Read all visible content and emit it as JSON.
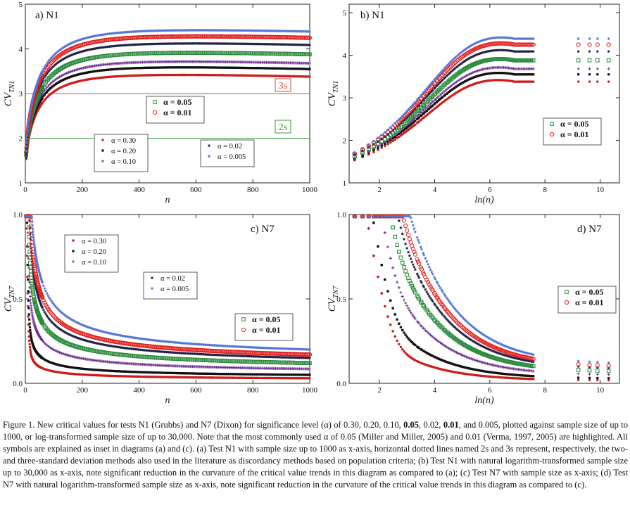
{
  "colors": {
    "a030": "#d01b1b",
    "a020": "#111111",
    "a010": "#6a2d8f",
    "a005": "#2a8a3a",
    "a002": "#222244",
    "a001": "#e0201e",
    "a0005": "#5577d8",
    "line3s": "#d04848",
    "line2s": "#3a9a3a"
  },
  "chart_data": [
    {
      "panel": "a",
      "type": "scatter",
      "title": "a)  N1",
      "xlabel": "n",
      "ylabel": "CV",
      "ylabel_sub": "TN1",
      "xlim": [
        0,
        1000
      ],
      "ylim": [
        1,
        5
      ],
      "xticks": [
        "0",
        "200",
        "400",
        "600",
        "800",
        "1000"
      ],
      "yticks": [
        "1",
        "2",
        "3",
        "4",
        "5"
      ],
      "hlines": [
        {
          "label": "3s",
          "y": 3.0
        },
        {
          "label": "2s",
          "y": 2.0
        }
      ],
      "series": [
        {
          "name": "α = 0.30",
          "key": "a030",
          "marker": "dot",
          "at1000": 3.38
        },
        {
          "name": "α = 0.20",
          "key": "a020",
          "marker": "square",
          "at1000": 3.55
        },
        {
          "name": "α = 0.10",
          "key": "a010",
          "marker": "cross",
          "at1000": 3.68
        },
        {
          "name": "α = 0.05",
          "key": "a005",
          "marker": "opensquare",
          "at1000": 3.88
        },
        {
          "name": "α = 0.02",
          "key": "a002",
          "marker": "star",
          "at1000": 4.09
        },
        {
          "name": "α = 0.01",
          "key": "a001",
          "marker": "opencircle",
          "at1000": 4.25
        },
        {
          "name": "α = 0.005",
          "key": "a0005",
          "marker": "star",
          "at1000": 4.39
        }
      ],
      "legends": [
        {
          "items": [
            "a005",
            "a001"
          ],
          "bold": true
        },
        {
          "items": [
            "a030",
            "a020",
            "a010"
          ],
          "bold": false
        },
        {
          "items": [
            "a002",
            "a0005"
          ],
          "bold": false
        }
      ]
    },
    {
      "panel": "b",
      "type": "scatter",
      "title": "b)  N1",
      "xlabel": "ln(n)",
      "ylabel": "CV",
      "ylabel_sub": "TN1",
      "xlim": [
        0.9,
        10.7
      ],
      "ylim": [
        1,
        5.2
      ],
      "xticks": [
        "2",
        "4",
        "6",
        "8",
        "10"
      ],
      "yticks": [
        "1",
        "2",
        "3",
        "4",
        "5"
      ],
      "series_ref": "a",
      "legends": [
        {
          "items": [
            "a005",
            "a001"
          ],
          "bold": true
        }
      ]
    },
    {
      "panel": "c",
      "type": "scatter",
      "title": "c)  N7",
      "xlabel": "n",
      "ylabel": "CV",
      "ylabel_sub": "TN7",
      "xlim": [
        0,
        1000
      ],
      "ylim": [
        0,
        1.0
      ],
      "xticks": [
        "0",
        "200",
        "400",
        "600",
        "800",
        "1000"
      ],
      "yticks": [
        "0.0",
        "0.5",
        "1.0"
      ],
      "series": [
        {
          "name": "α = 0.30",
          "key": "a030",
          "marker": "dot",
          "at1000": 0.03
        },
        {
          "name": "α = 0.20",
          "key": "a020",
          "marker": "square",
          "at1000": 0.05
        },
        {
          "name": "α = 0.10",
          "key": "a010",
          "marker": "cross",
          "at1000": 0.085
        },
        {
          "name": "α = 0.05",
          "key": "a005",
          "marker": "opensquare",
          "at1000": 0.12
        },
        {
          "name": "α = 0.02",
          "key": "a002",
          "marker": "star",
          "at1000": 0.15
        },
        {
          "name": "α = 0.01",
          "key": "a001",
          "marker": "opencircle",
          "at1000": 0.17
        },
        {
          "name": "α = 0.005",
          "key": "a0005",
          "marker": "star",
          "at1000": 0.2
        }
      ],
      "legends": [
        {
          "items": [
            "a030",
            "a020",
            "a010"
          ],
          "bold": false
        },
        {
          "items": [
            "a002",
            "a0005"
          ],
          "bold": false
        },
        {
          "items": [
            "a005",
            "a001"
          ],
          "bold": true
        }
      ]
    },
    {
      "panel": "d",
      "type": "scatter",
      "title": "d)  N7",
      "xlabel": "ln(n)",
      "ylabel": "CV",
      "ylabel_sub": "TN7",
      "xlim": [
        0.9,
        10.7
      ],
      "ylim": [
        0,
        1.0
      ],
      "xticks": [
        "2",
        "4",
        "6",
        "8",
        "10"
      ],
      "yticks": [
        "0.0",
        "0.5",
        "1.0"
      ],
      "series_ref": "c",
      "legends": [
        {
          "items": [
            "a005",
            "a001"
          ],
          "bold": true
        }
      ]
    }
  ],
  "caption": {
    "p1": "Figure 1. New critical values for tests N1 (Grubbs) and N7 (Dixon) for significance level (α) of 0.30, 0.20, 0.10, ",
    "b1": "0.05",
    "p2": ", 0.02, ",
    "b2": "0.01",
    "p3": ", and 0.005, plotted against sample size of up to 1000, or log-transformed sample size of up to 30,000. Note that the most commonly used α of 0.05 (Miller and Miller, 2005) and 0.01 (Verma, 1997, 2005) are highlighted. All symbols are explained as inset in diagrams (a) and (c). (a) Test N1 with sample size up to 1000 as x-axis, horizontal dotted lines named 2s and 3s represent, respectively, the two- and three-standard deviation methods also used in the literature as discordancy methods based on population criteria; (b) Test N1 with natural logarithm-transformed sample size up to 30,000 as x-axis, note significant reduction in the curvature of the critical value trends in this diagram as compared to (a);  (c) Test N7 with sample size as x-axis; (d) Test N7 with natural logarithm-transformed sample size as x-axis, note significant reduction in the curvature of the critical value trends in this diagram as compared to (c)."
  }
}
